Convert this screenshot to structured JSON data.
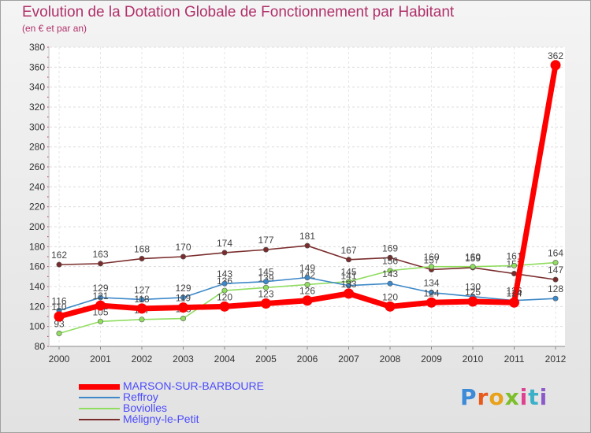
{
  "chart_data": {
    "type": "line",
    "title": "Evolution de la Dotation Globale de Fonctionnement par Habitant",
    "subtitle": "(en € et par an)",
    "xlabel": "",
    "ylabel": "",
    "categories": [
      "2000",
      "2001",
      "2002",
      "2003",
      "2004",
      "2005",
      "2006",
      "2007",
      "2008",
      "2009",
      "2010",
      "2011",
      "2012"
    ],
    "ylim": [
      80,
      380
    ],
    "yticks": [
      80,
      100,
      120,
      140,
      160,
      180,
      200,
      220,
      240,
      260,
      280,
      300,
      320,
      340,
      360,
      380
    ],
    "grid": true,
    "series": [
      {
        "name": "Méligny-le-Petit",
        "color": "#7a2c2c",
        "values": [
          162,
          163,
          168,
          170,
          174,
          177,
          181,
          167,
          169,
          157,
          159,
          153,
          147
        ],
        "labels": [
          "162",
          "163",
          "168",
          "170",
          "174",
          "177",
          "181",
          "167",
          "169",
          "157",
          "159",
          "153",
          "147"
        ]
      },
      {
        "name": "Boviolles",
        "color": "#90dd60",
        "values": [
          93,
          105,
          107,
          108,
          136,
          139,
          142,
          145,
          156,
          160,
          160,
          161,
          164
        ],
        "labels": [
          "93",
          "105",
          "107",
          "108",
          "136",
          "139",
          "142",
          "145",
          "156",
          "160",
          "160",
          "161",
          "164"
        ]
      },
      {
        "name": "Reffroy",
        "color": "#3c88c8",
        "values": [
          116,
          129,
          127,
          129,
          143,
          145,
          149,
          141,
          143,
          134,
          130,
          126,
          128
        ],
        "labels": [
          "116",
          "129",
          "127",
          "129",
          "143",
          "145",
          "149",
          "141",
          "143",
          "134",
          "130",
          "126",
          "128"
        ]
      },
      {
        "name": "MARSON-SUR-BARBOURE",
        "color": "#ff0000",
        "values": [
          110,
          121,
          118,
          119,
          120,
          123,
          126,
          133,
          120,
          124,
          125,
          124,
          362
        ],
        "labels": [
          "110",
          "121",
          "118",
          "119",
          "120",
          "123",
          "126",
          "133",
          "120",
          "124",
          "125",
          "124",
          "362"
        ]
      }
    ]
  },
  "legend": [
    {
      "name": "MARSON-SUR-BARBOURE",
      "color": "#ff0000",
      "text_color": "#4a4aff"
    },
    {
      "name": "Reffroy",
      "color": "#3c88c8",
      "text_color": "#4a4aff"
    },
    {
      "name": "Boviolles",
      "color": "#90dd60",
      "text_color": "#4a4aff"
    },
    {
      "name": "Méligny-le-Petit",
      "color": "#7a2c2c",
      "text_color": "#4a4aff"
    }
  ],
  "logo": {
    "letters": [
      "P",
      "r",
      "o",
      "x",
      "i",
      "t",
      "i"
    ]
  }
}
